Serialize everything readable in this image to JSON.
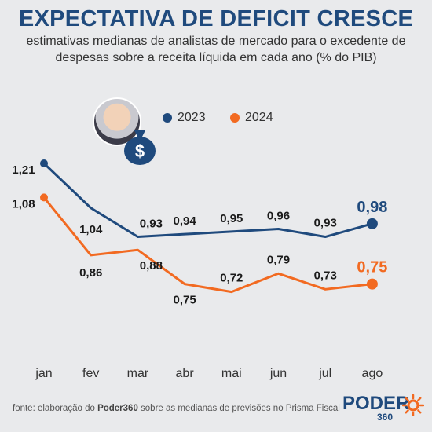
{
  "title": "EXPECTATIVA DE DEFICIT CRESCE",
  "subtitle": "estimativas medianas de analistas de mercado para o excedente de despesas sobre a receita líquida em cada ano (% do PIB)",
  "legend": [
    {
      "label": "2023",
      "color": "#1f4a7d"
    },
    {
      "label": "2024",
      "color": "#f26a21"
    }
  ],
  "source": {
    "prefix": "fonte: elaboração do ",
    "brand": "Poder360",
    "suffix": " sobre as medianas de previsões no Prisma Fiscal"
  },
  "logo": {
    "name": "PODER",
    "number": "360"
  },
  "icons": {
    "money_bag_symbol": "$"
  },
  "chart_data": {
    "type": "line",
    "categories": [
      "jan",
      "fev",
      "mar",
      "abr",
      "mai",
      "jun",
      "jul",
      "ago"
    ],
    "series": [
      {
        "name": "2023",
        "color": "#1f4a7d",
        "values": [
          1.21,
          1.04,
          0.93,
          0.94,
          0.95,
          0.96,
          0.93,
          0.98
        ],
        "labels": [
          "1,21",
          "1,04",
          "0,93",
          "0,94",
          "0,95",
          "0,96",
          "0,93",
          "0,98"
        ]
      },
      {
        "name": "2024",
        "color": "#f26a21",
        "values": [
          1.08,
          0.86,
          0.88,
          0.75,
          0.72,
          0.79,
          0.73,
          0.75
        ],
        "labels": [
          "1,08",
          "0,86",
          "0,88",
          "0,75",
          "0,72",
          "0,79",
          "0,73",
          "0,75"
        ]
      }
    ],
    "grid": false,
    "legend_position": "top"
  }
}
